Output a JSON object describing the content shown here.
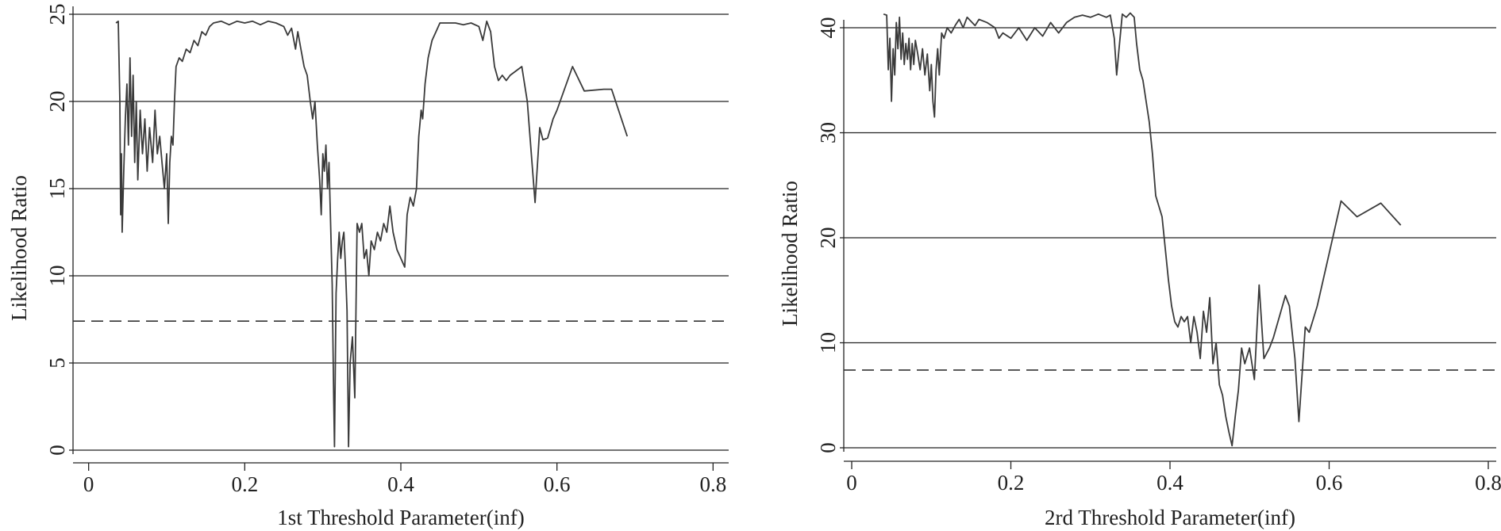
{
  "chart_data": [
    {
      "type": "line",
      "title": "",
      "xlabel": "1st Threshold Parameter(inf)",
      "ylabel": "Likelihood Ratio",
      "xlim": [
        -0.02,
        0.82
      ],
      "ylim": [
        0,
        25
      ],
      "x_ticks": [
        0,
        0.2,
        0.4,
        0.6,
        0.8
      ],
      "x_tick_labels": [
        "0",
        "0.2",
        "0.4",
        "0.6",
        "0.8"
      ],
      "y_ticks": [
        0,
        5,
        10,
        15,
        20,
        25
      ],
      "y_tick_labels": [
        "0",
        "5",
        "10",
        "15",
        "20",
        "25"
      ],
      "grid": "horizontal",
      "legend": "none",
      "reference_line": {
        "y": 7.4,
        "style": "dashed"
      },
      "line_color": "#3a3a3a",
      "series": [
        {
          "points": [
            [
              0.035,
              24.5
            ],
            [
              0.038,
              24.6
            ],
            [
              0.04,
              20.0
            ],
            [
              0.041,
              13.5
            ],
            [
              0.042,
              17.0
            ],
            [
              0.043,
              12.5
            ],
            [
              0.045,
              16.0
            ],
            [
              0.047,
              19.0
            ],
            [
              0.049,
              21.0
            ],
            [
              0.051,
              17.5
            ],
            [
              0.053,
              22.5
            ],
            [
              0.055,
              18.0
            ],
            [
              0.057,
              21.5
            ],
            [
              0.059,
              16.5
            ],
            [
              0.061,
              20.0
            ],
            [
              0.063,
              15.5
            ],
            [
              0.066,
              19.5
            ],
            [
              0.069,
              17.0
            ],
            [
              0.072,
              19.0
            ],
            [
              0.075,
              16.0
            ],
            [
              0.078,
              18.5
            ],
            [
              0.082,
              16.5
            ],
            [
              0.085,
              19.5
            ],
            [
              0.088,
              17.0
            ],
            [
              0.091,
              18.0
            ],
            [
              0.094,
              16.5
            ],
            [
              0.097,
              15.0
            ],
            [
              0.1,
              17.0
            ],
            [
              0.102,
              13.0
            ],
            [
              0.104,
              16.5
            ],
            [
              0.106,
              18.0
            ],
            [
              0.108,
              17.5
            ],
            [
              0.11,
              20.0
            ],
            [
              0.112,
              22.0
            ],
            [
              0.116,
              22.5
            ],
            [
              0.12,
              22.3
            ],
            [
              0.125,
              23.0
            ],
            [
              0.13,
              22.8
            ],
            [
              0.135,
              23.5
            ],
            [
              0.14,
              23.2
            ],
            [
              0.145,
              24.0
            ],
            [
              0.15,
              23.8
            ],
            [
              0.155,
              24.3
            ],
            [
              0.16,
              24.5
            ],
            [
              0.17,
              24.6
            ],
            [
              0.18,
              24.4
            ],
            [
              0.19,
              24.6
            ],
            [
              0.2,
              24.5
            ],
            [
              0.21,
              24.6
            ],
            [
              0.22,
              24.4
            ],
            [
              0.23,
              24.6
            ],
            [
              0.24,
              24.5
            ],
            [
              0.25,
              24.3
            ],
            [
              0.255,
              23.8
            ],
            [
              0.26,
              24.2
            ],
            [
              0.265,
              23.0
            ],
            [
              0.268,
              24.0
            ],
            [
              0.272,
              23.0
            ],
            [
              0.276,
              22.0
            ],
            [
              0.28,
              21.5
            ],
            [
              0.284,
              20.0
            ],
            [
              0.287,
              19.0
            ],
            [
              0.29,
              20.0
            ],
            [
              0.293,
              17.5
            ],
            [
              0.296,
              15.5
            ],
            [
              0.298,
              13.5
            ],
            [
              0.3,
              17.0
            ],
            [
              0.302,
              16.0
            ],
            [
              0.304,
              17.5
            ],
            [
              0.306,
              15.0
            ],
            [
              0.308,
              16.5
            ],
            [
              0.31,
              13.0
            ],
            [
              0.312,
              9.5
            ],
            [
              0.314,
              3.0
            ],
            [
              0.315,
              0.2
            ],
            [
              0.317,
              9.0
            ],
            [
              0.319,
              11.0
            ],
            [
              0.321,
              12.5
            ],
            [
              0.323,
              11.0
            ],
            [
              0.325,
              12.0
            ],
            [
              0.327,
              12.5
            ],
            [
              0.329,
              10.5
            ],
            [
              0.331,
              8.0
            ],
            [
              0.333,
              0.2
            ],
            [
              0.335,
              5.0
            ],
            [
              0.338,
              6.5
            ],
            [
              0.341,
              3.0
            ],
            [
              0.344,
              13.0
            ],
            [
              0.347,
              12.5
            ],
            [
              0.35,
              13.0
            ],
            [
              0.353,
              11.0
            ],
            [
              0.356,
              11.5
            ],
            [
              0.359,
              10.0
            ],
            [
              0.362,
              12.0
            ],
            [
              0.366,
              11.5
            ],
            [
              0.37,
              12.5
            ],
            [
              0.374,
              12.0
            ],
            [
              0.378,
              13.0
            ],
            [
              0.382,
              12.5
            ],
            [
              0.386,
              14.0
            ],
            [
              0.39,
              12.5
            ],
            [
              0.395,
              11.5
            ],
            [
              0.4,
              11.0
            ],
            [
              0.405,
              10.5
            ],
            [
              0.408,
              13.5
            ],
            [
              0.412,
              14.5
            ],
            [
              0.416,
              14.0
            ],
            [
              0.42,
              15.0
            ],
            [
              0.423,
              18.0
            ],
            [
              0.426,
              19.5
            ],
            [
              0.428,
              19.0
            ],
            [
              0.431,
              21.0
            ],
            [
              0.435,
              22.5
            ],
            [
              0.44,
              23.5
            ],
            [
              0.445,
              24.0
            ],
            [
              0.45,
              24.5
            ],
            [
              0.46,
              24.5
            ],
            [
              0.47,
              24.5
            ],
            [
              0.48,
              24.4
            ],
            [
              0.49,
              24.5
            ],
            [
              0.5,
              24.3
            ],
            [
              0.505,
              23.5
            ],
            [
              0.51,
              24.6
            ],
            [
              0.515,
              24.0
            ],
            [
              0.52,
              22.0
            ],
            [
              0.525,
              21.2
            ],
            [
              0.53,
              21.5
            ],
            [
              0.535,
              21.2
            ],
            [
              0.54,
              21.5
            ],
            [
              0.555,
              22.0
            ],
            [
              0.562,
              20.0
            ],
            [
              0.568,
              16.5
            ],
            [
              0.572,
              14.2
            ],
            [
              0.578,
              18.5
            ],
            [
              0.582,
              17.8
            ],
            [
              0.588,
              17.9
            ],
            [
              0.595,
              19.0
            ],
            [
              0.6,
              19.5
            ],
            [
              0.62,
              22.0
            ],
            [
              0.635,
              20.6
            ],
            [
              0.66,
              20.7
            ],
            [
              0.67,
              20.7
            ],
            [
              0.69,
              18.0
            ]
          ]
        }
      ]
    },
    {
      "type": "line",
      "title": "",
      "xlabel": "2rd Threshold Parameter(inf)",
      "ylabel": "Likelihood Ratio",
      "xlim": [
        -0.01,
        0.81
      ],
      "ylim": [
        0,
        40
      ],
      "x_ticks": [
        0,
        0.2,
        0.4,
        0.6,
        0.8
      ],
      "x_tick_labels": [
        "0",
        "0.2",
        "0.4",
        "0.6",
        "0.8"
      ],
      "y_ticks": [
        0,
        10,
        20,
        30,
        40
      ],
      "y_tick_labels": [
        "0",
        "10",
        "20",
        "30",
        "40"
      ],
      "grid": "horizontal",
      "legend": "none",
      "reference_line": {
        "y": 7.4,
        "style": "dashed"
      },
      "line_color": "#3a3a3a",
      "series": [
        {
          "points": [
            [
              0.04,
              41.3
            ],
            [
              0.044,
              41.2
            ],
            [
              0.046,
              36.0
            ],
            [
              0.048,
              39.0
            ],
            [
              0.05,
              33.0
            ],
            [
              0.052,
              38.0
            ],
            [
              0.054,
              35.5
            ],
            [
              0.056,
              40.5
            ],
            [
              0.058,
              38.0
            ],
            [
              0.06,
              41.0
            ],
            [
              0.062,
              37.0
            ],
            [
              0.064,
              39.5
            ],
            [
              0.066,
              36.5
            ],
            [
              0.068,
              38.5
            ],
            [
              0.07,
              37.0
            ],
            [
              0.072,
              39.0
            ],
            [
              0.074,
              36.0
            ],
            [
              0.076,
              38.5
            ],
            [
              0.078,
              36.5
            ],
            [
              0.08,
              38.8
            ],
            [
              0.083,
              37.5
            ],
            [
              0.086,
              36.0
            ],
            [
              0.089,
              38.0
            ],
            [
              0.092,
              35.5
            ],
            [
              0.095,
              37.5
            ],
            [
              0.098,
              34.0
            ],
            [
              0.1,
              36.5
            ],
            [
              0.102,
              33.0
            ],
            [
              0.104,
              31.5
            ],
            [
              0.106,
              36.0
            ],
            [
              0.108,
              38.0
            ],
            [
              0.11,
              35.5
            ],
            [
              0.113,
              39.5
            ],
            [
              0.116,
              39.0
            ],
            [
              0.12,
              40.0
            ],
            [
              0.125,
              39.5
            ],
            [
              0.13,
              40.2
            ],
            [
              0.135,
              40.8
            ],
            [
              0.14,
              40.0
            ],
            [
              0.145,
              41.0
            ],
            [
              0.15,
              40.6
            ],
            [
              0.155,
              40.2
            ],
            [
              0.16,
              40.8
            ],
            [
              0.17,
              40.5
            ],
            [
              0.18,
              40.0
            ],
            [
              0.185,
              39.0
            ],
            [
              0.19,
              39.5
            ],
            [
              0.2,
              39.0
            ],
            [
              0.21,
              40.0
            ],
            [
              0.22,
              38.8
            ],
            [
              0.23,
              40.0
            ],
            [
              0.24,
              39.2
            ],
            [
              0.25,
              40.5
            ],
            [
              0.26,
              39.5
            ],
            [
              0.27,
              40.5
            ],
            [
              0.28,
              41.0
            ],
            [
              0.29,
              41.2
            ],
            [
              0.3,
              41.0
            ],
            [
              0.31,
              41.3
            ],
            [
              0.32,
              41.0
            ],
            [
              0.325,
              41.2
            ],
            [
              0.33,
              39.0
            ],
            [
              0.333,
              35.5
            ],
            [
              0.336,
              38.0
            ],
            [
              0.34,
              41.3
            ],
            [
              0.345,
              41.0
            ],
            [
              0.35,
              41.4
            ],
            [
              0.355,
              41.0
            ],
            [
              0.358,
              38.5
            ],
            [
              0.362,
              36.0
            ],
            [
              0.366,
              35.0
            ],
            [
              0.37,
              33.0
            ],
            [
              0.374,
              31.0
            ],
            [
              0.378,
              28.0
            ],
            [
              0.382,
              24.0
            ],
            [
              0.386,
              23.0
            ],
            [
              0.39,
              22.0
            ],
            [
              0.394,
              19.0
            ],
            [
              0.398,
              16.0
            ],
            [
              0.402,
              13.5
            ],
            [
              0.406,
              12.0
            ],
            [
              0.41,
              11.5
            ],
            [
              0.414,
              12.5
            ],
            [
              0.418,
              12.0
            ],
            [
              0.422,
              12.5
            ],
            [
              0.426,
              10.0
            ],
            [
              0.43,
              12.5
            ],
            [
              0.434,
              11.0
            ],
            [
              0.438,
              8.5
            ],
            [
              0.442,
              13.0
            ],
            [
              0.446,
              11.0
            ],
            [
              0.45,
              14.3
            ],
            [
              0.454,
              8.0
            ],
            [
              0.458,
              10.0
            ],
            [
              0.462,
              6.0
            ],
            [
              0.466,
              5.0
            ],
            [
              0.47,
              3.0
            ],
            [
              0.474,
              1.5
            ],
            [
              0.478,
              0.2
            ],
            [
              0.482,
              3.0
            ],
            [
              0.486,
              5.5
            ],
            [
              0.49,
              9.5
            ],
            [
              0.494,
              8.0
            ],
            [
              0.5,
              9.5
            ],
            [
              0.506,
              6.5
            ],
            [
              0.512,
              15.5
            ],
            [
              0.518,
              8.5
            ],
            [
              0.525,
              9.5
            ],
            [
              0.53,
              10.5
            ],
            [
              0.545,
              14.5
            ],
            [
              0.55,
              13.5
            ],
            [
              0.557,
              8.5
            ],
            [
              0.562,
              2.5
            ],
            [
              0.57,
              11.5
            ],
            [
              0.575,
              11.0
            ],
            [
              0.585,
              13.5
            ],
            [
              0.6,
              18.5
            ],
            [
              0.615,
              23.5
            ],
            [
              0.635,
              22.0
            ],
            [
              0.665,
              23.3
            ],
            [
              0.69,
              21.2
            ]
          ]
        }
      ]
    }
  ]
}
